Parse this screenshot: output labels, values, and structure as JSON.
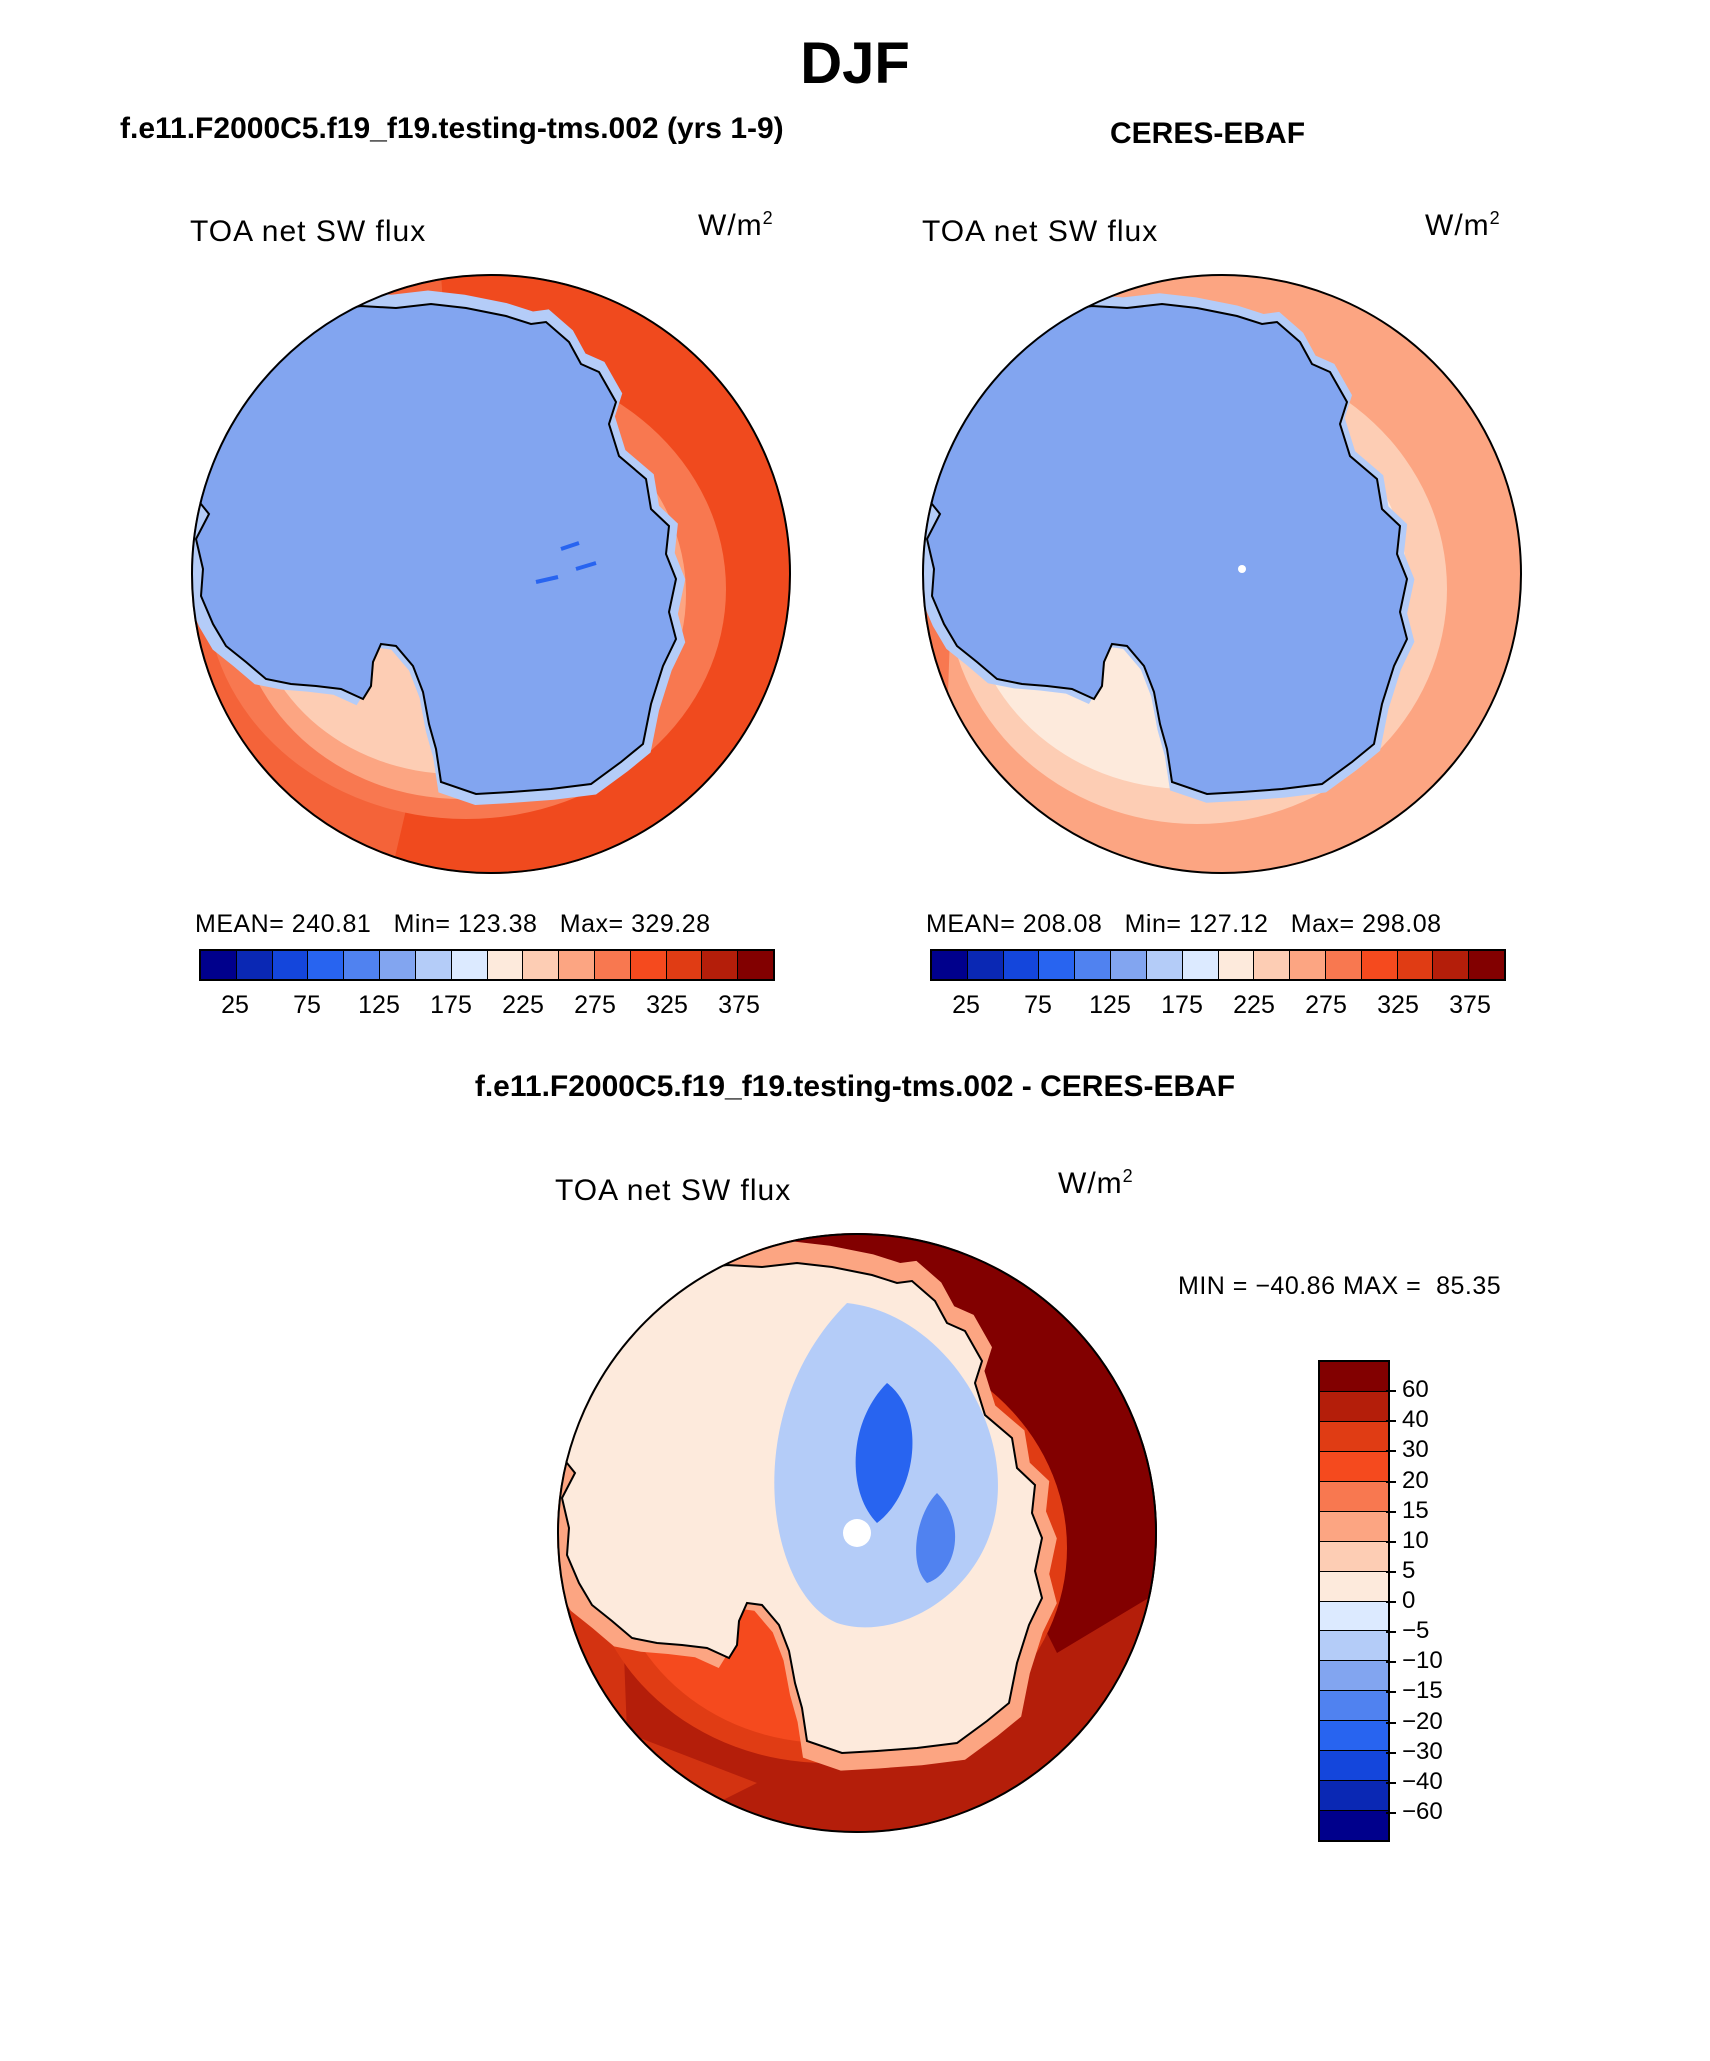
{
  "season": "DJF",
  "panel1": {
    "title": "f.e11.F2000C5.f19_f19.testing-tms.002 (yrs 1-9)",
    "label": "TOA net SW flux",
    "units_base": "W/m",
    "units_exp": "2",
    "mean_label": "MEAN=",
    "mean": "240.81",
    "min_label": "Min=",
    "min": "123.38",
    "max_label": "Max=",
    "max": "329.28"
  },
  "panel2": {
    "title": "CERES-EBAF",
    "label": "TOA net SW flux",
    "units_base": "W/m",
    "units_exp": "2",
    "mean_label": "MEAN=",
    "mean": "208.08",
    "min_label": "Min=",
    "min": "127.12",
    "max_label": "Max=",
    "max": "298.08"
  },
  "panel3": {
    "title": "f.e11.F2000C5.f19_f19.testing-tms.002 - CERES-EBAF",
    "label": "TOA net SW flux",
    "units_base": "W/m",
    "units_exp": "2",
    "min_label": "MIN =",
    "min": "−40.86",
    "max_label": "MAX =",
    "max": "85.35"
  },
  "colors": {
    "abs_scale": [
      "#00008c",
      "#0a28b4",
      "#1446dc",
      "#2864f0",
      "#5082f0",
      "#82a5f0",
      "#b4ccf8",
      "#dceaff",
      "#fdeadc",
      "#fdcdb4",
      "#fca582",
      "#f87850",
      "#f54a1e",
      "#e03c14",
      "#b41e0a",
      "#820000"
    ],
    "diff_scale": [
      "#00008c",
      "#0a28b4",
      "#1446dc",
      "#2864f0",
      "#5082f0",
      "#82a5f0",
      "#b4ccf8",
      "#dceaff",
      "#fdeadc",
      "#fdcdb4",
      "#fca582",
      "#f87850",
      "#f54a1e",
      "#e03c14",
      "#b41e0a",
      "#820000"
    ],
    "coastline": "#000000"
  },
  "chart_data": [
    {
      "type": "heatmap",
      "projection": "south-polar-stereographic",
      "title": "f.e11.F2000C5.f19_f19.testing-tms.002 (yrs 1-9)",
      "variable": "TOA net SW flux",
      "units": "W/m^2",
      "colorbar_ticks": [
        "25",
        "75",
        "125",
        "175",
        "225",
        "275",
        "325",
        "375"
      ],
      "colorbar_levels": [
        25,
        50,
        75,
        100,
        125,
        150,
        175,
        200,
        225,
        250,
        275,
        300,
        325,
        350,
        375
      ],
      "stats": {
        "mean": 240.81,
        "min": 123.38,
        "max": 329.28
      },
      "field_summary": {
        "antarctic_interior": 160,
        "antarctic_coast": 215,
        "southern_ocean_near": 290,
        "southern_ocean_far": 312
      }
    },
    {
      "type": "heatmap",
      "projection": "south-polar-stereographic",
      "title": "CERES-EBAF",
      "variable": "TOA net SW flux",
      "units": "W/m^2",
      "colorbar_ticks": [
        "25",
        "75",
        "125",
        "175",
        "225",
        "275",
        "325",
        "375"
      ],
      "colorbar_levels": [
        25,
        50,
        75,
        100,
        125,
        150,
        175,
        200,
        225,
        250,
        275,
        300,
        325,
        350,
        375
      ],
      "stats": {
        "mean": 208.08,
        "min": 127.12,
        "max": 298.08
      },
      "field_summary": {
        "antarctic_interior": 160,
        "antarctic_coast": 185,
        "southern_ocean_near": 215,
        "southern_ocean_far": 262
      }
    },
    {
      "type": "heatmap",
      "projection": "south-polar-stereographic",
      "title": "f.e11.F2000C5.f19_f19.testing-tms.002 - CERES-EBAF",
      "variable": "TOA net SW flux",
      "units": "W/m^2",
      "colorbar_ticks": [
        "60",
        "40",
        "30",
        "20",
        "15",
        "10",
        "5",
        "0",
        "−5",
        "−10",
        "−15",
        "−20",
        "−30",
        "−40",
        "−60"
      ],
      "colorbar_levels": [
        60,
        40,
        30,
        20,
        15,
        10,
        5,
        0,
        -5,
        -10,
        -15,
        -20,
        -30,
        -40,
        -60
      ],
      "stats": {
        "min": -40.86,
        "max": 85.35
      },
      "field_summary": {
        "antarctic_interior": -8,
        "antarctic_coast": 8,
        "southern_ocean_near": 45,
        "southern_ocean_far": 65
      }
    }
  ]
}
